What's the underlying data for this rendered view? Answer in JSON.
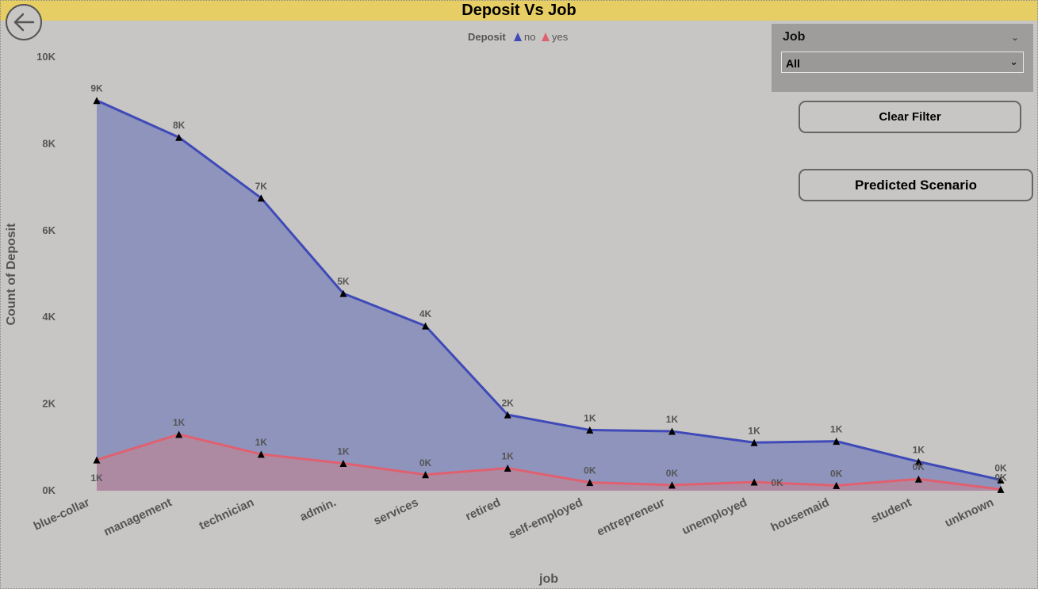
{
  "header": {
    "title": "Deposit Vs Job"
  },
  "back_button_icon": "back-arrow-icon",
  "filter": {
    "label": "Job",
    "selected": "All"
  },
  "buttons": {
    "clear_filter": "Clear Filter",
    "predicted_scenario": "Predicted Scenario"
  },
  "chart_data": {
    "type": "area",
    "xlabel": "job",
    "ylabel": "Count of Deposit",
    "ylim": [
      0,
      10000
    ],
    "yticks": [
      "0K",
      "2K",
      "4K",
      "6K",
      "8K",
      "10K"
    ],
    "legend_title": "Deposit",
    "legend_position": "top-center",
    "grid": false,
    "categories": [
      "blue-collar",
      "management",
      "technician",
      "admin.",
      "services",
      "retired",
      "self-employed",
      "entrepreneur",
      "unemployed",
      "housemaid",
      "student",
      "unknown"
    ],
    "series": [
      {
        "name": "no",
        "color": "#3f4ab8",
        "fill": "#8f94bc",
        "values": [
          9000,
          8150,
          6750,
          4550,
          3800,
          1750,
          1400,
          1370,
          1110,
          1140,
          670,
          250
        ],
        "labels": [
          "9K",
          "8K",
          "7K",
          "5K",
          "4K",
          "2K",
          "1K",
          "1K",
          "1K",
          "1K",
          "1K",
          "0K"
        ]
      },
      {
        "name": "yes",
        "color": "#e06070",
        "fill": "#b0889e",
        "values": [
          710,
          1300,
          840,
          630,
          370,
          520,
          190,
          130,
          200,
          120,
          270,
          30
        ],
        "labels": [
          "1K",
          "1K",
          "1K",
          "1K",
          "0K",
          "1K",
          "0K",
          "0K",
          "0K",
          "0K",
          "0K",
          "0K"
        ]
      }
    ]
  }
}
